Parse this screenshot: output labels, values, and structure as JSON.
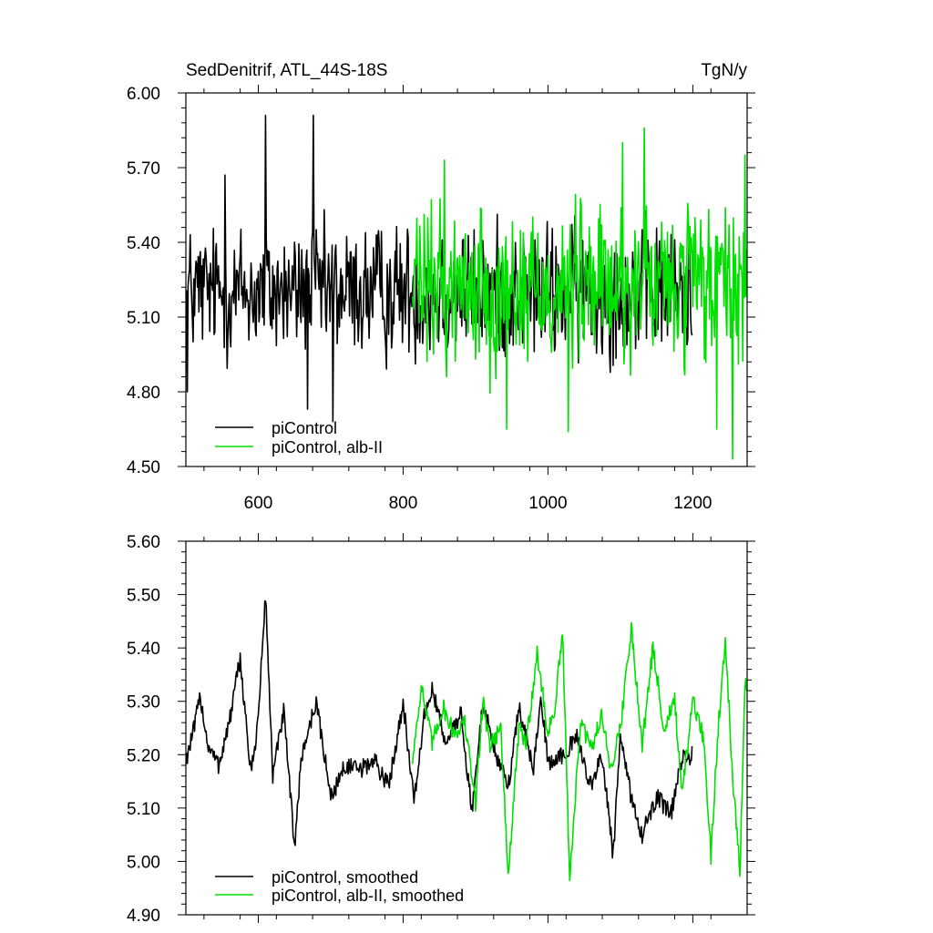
{
  "chart_data": [
    {
      "type": "line",
      "title": "SedDenitrif, ATL_44S-18S",
      "units": "TgN/y",
      "xlim": [
        500,
        1275
      ],
      "ylim": [
        4.5,
        6.0
      ],
      "xticks": [
        600,
        800,
        1000,
        1200
      ],
      "xtick_labels": [
        "600",
        "800",
        "1000",
        "1200"
      ],
      "yticks": [
        4.5,
        4.8,
        5.1,
        5.4,
        5.7,
        6.0
      ],
      "ytick_labels": [
        "4.50",
        "4.80",
        "5.10",
        "5.40",
        "5.70",
        "6.00"
      ],
      "legend_position": "bottom-left",
      "series": [
        {
          "name": "piControl",
          "color": "#000000",
          "x_range": [
            500,
            1199
          ],
          "mean": 5.2,
          "noise_amplitude": 0.15,
          "min": 4.68,
          "max": 5.91,
          "peaks": [
            [
              610,
              5.91
            ],
            [
              676,
              5.91
            ],
            [
              554,
              5.67
            ],
            [
              703,
              4.68
            ],
            [
              668,
              4.73
            ],
            [
              502,
              4.8
            ]
          ]
        },
        {
          "name": "piControl, alb-II",
          "color": "#00e000",
          "x_range": [
            813,
            1275
          ],
          "mean": 5.22,
          "noise_amplitude": 0.18,
          "min": 4.53,
          "max": 5.86,
          "peaks": [
            [
              1133,
              5.86
            ],
            [
              1103,
              5.8
            ],
            [
              1272,
              5.75
            ],
            [
              857,
              5.73
            ],
            [
              1255,
              4.53
            ],
            [
              943,
              4.65
            ],
            [
              1028,
              4.64
            ],
            [
              1233,
              4.65
            ]
          ]
        }
      ]
    },
    {
      "type": "line",
      "xlim": [
        500,
        1275
      ],
      "ylim": [
        4.9,
        5.6
      ],
      "yticks": [
        4.9,
        5.0,
        5.1,
        5.2,
        5.3,
        5.4,
        5.5,
        5.6
      ],
      "ytick_labels": [
        "4.90",
        "5.00",
        "5.10",
        "5.20",
        "5.30",
        "5.40",
        "5.50",
        "5.60"
      ],
      "legend_position": "bottom-left",
      "series": [
        {
          "name": "piControl, smoothed",
          "color": "#000000",
          "x_range": [
            500,
            1199
          ],
          "keypoints": [
            [
              500,
              5.19
            ],
            [
              510,
              5.24
            ],
            [
              520,
              5.31
            ],
            [
              530,
              5.22
            ],
            [
              545,
              5.18
            ],
            [
              560,
              5.26
            ],
            [
              575,
              5.38
            ],
            [
              590,
              5.16
            ],
            [
              600,
              5.27
            ],
            [
              610,
              5.5
            ],
            [
              620,
              5.16
            ],
            [
              635,
              5.28
            ],
            [
              650,
              5.03
            ],
            [
              660,
              5.2
            ],
            [
              680,
              5.3
            ],
            [
              700,
              5.12
            ],
            [
              720,
              5.18
            ],
            [
              740,
              5.17
            ],
            [
              760,
              5.19
            ],
            [
              780,
              5.14
            ],
            [
              800,
              5.3
            ],
            [
              815,
              5.11
            ],
            [
              830,
              5.28
            ],
            [
              840,
              5.32
            ],
            [
              860,
              5.22
            ],
            [
              880,
              5.28
            ],
            [
              895,
              5.09
            ],
            [
              910,
              5.3
            ],
            [
              930,
              5.19
            ],
            [
              945,
              5.14
            ],
            [
              960,
              5.29
            ],
            [
              980,
              5.17
            ],
            [
              990,
              5.32
            ],
            [
              1000,
              5.18
            ],
            [
              1020,
              5.2
            ],
            [
              1040,
              5.23
            ],
            [
              1060,
              5.14
            ],
            [
              1075,
              5.2
            ],
            [
              1090,
              5.01
            ],
            [
              1100,
              5.23
            ],
            [
              1115,
              5.12
            ],
            [
              1130,
              5.05
            ],
            [
              1150,
              5.12
            ],
            [
              1170,
              5.09
            ],
            [
              1185,
              5.19
            ],
            [
              1199,
              5.2
            ]
          ]
        },
        {
          "name": "piControl, alb-II, smoothed",
          "color": "#00e000",
          "x_range": [
            813,
            1275
          ],
          "keypoints": [
            [
              813,
              5.19
            ],
            [
              825,
              5.33
            ],
            [
              840,
              5.22
            ],
            [
              855,
              5.29
            ],
            [
              870,
              5.24
            ],
            [
              885,
              5.26
            ],
            [
              900,
              5.11
            ],
            [
              910,
              5.3
            ],
            [
              920,
              5.22
            ],
            [
              935,
              5.25
            ],
            [
              945,
              4.97
            ],
            [
              960,
              5.25
            ],
            [
              970,
              5.22
            ],
            [
              985,
              5.39
            ],
            [
              1000,
              5.24
            ],
            [
              1010,
              5.29
            ],
            [
              1020,
              5.43
            ],
            [
              1030,
              4.97
            ],
            [
              1045,
              5.26
            ],
            [
              1060,
              5.21
            ],
            [
              1075,
              5.28
            ],
            [
              1085,
              5.17
            ],
            [
              1100,
              5.25
            ],
            [
              1115,
              5.44
            ],
            [
              1130,
              5.22
            ],
            [
              1145,
              5.4
            ],
            [
              1160,
              5.25
            ],
            [
              1175,
              5.3
            ],
            [
              1185,
              5.12
            ],
            [
              1200,
              5.3
            ],
            [
              1215,
              5.23
            ],
            [
              1225,
              5.01
            ],
            [
              1235,
              5.25
            ],
            [
              1245,
              5.42
            ],
            [
              1255,
              5.16
            ],
            [
              1265,
              4.98
            ],
            [
              1272,
              5.33
            ]
          ]
        }
      ]
    }
  ]
}
